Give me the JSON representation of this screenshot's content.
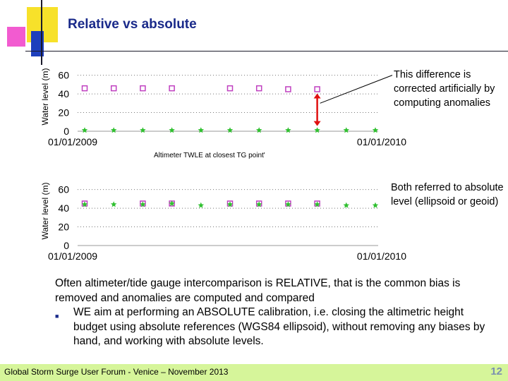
{
  "slide": {
    "title": "Relative vs absolute",
    "note_top": "This difference is corrected artificially by computing anomalies",
    "note_bottom": "Both referred to absolute level (ellipsoid or geoid)",
    "between_label": "Altimeter TWLE at closest TG point'",
    "paragraph": "Often altimeter/tide gauge intercomparison is RELATIVE, that is the common bias is removed and anomalies are computed and compared",
    "bullet": "WE aim at performing an ABSOLUTE calibration, i.e. closing the altimetric height budget using absolute references (WGS84 ellipsoid), without removing any biases by hand, and working with absolute levels.",
    "footer": "Global Storm Surge User Forum - Venice – November 2013",
    "page_number": "12"
  },
  "chart_data": [
    {
      "type": "scatter",
      "ylabel": "Water level (m)",
      "x_tick_labels": [
        "01/01/2009",
        "01/01/2010"
      ],
      "yticks": [
        "0",
        "20",
        "40",
        "60"
      ],
      "ylim": [
        0,
        65
      ],
      "grid": true,
      "series": [
        {
          "marker": "square",
          "color": "#c040c0",
          "x": [
            1,
            2,
            3,
            4,
            6,
            7,
            8,
            9
          ],
          "y": [
            46,
            46,
            46,
            46,
            46,
            46,
            45,
            45
          ]
        },
        {
          "marker": "star",
          "color": "#30c030",
          "x": [
            1,
            2,
            3,
            4,
            5,
            6,
            7,
            8,
            9,
            10,
            11
          ],
          "y": [
            1,
            1,
            1,
            1,
            1,
            1,
            1,
            1,
            1,
            1,
            1
          ]
        }
      ],
      "annotation": {
        "type": "double-arrow",
        "color": "#e01010"
      }
    },
    {
      "type": "scatter",
      "ylabel": "Water level (m)",
      "x_tick_labels": [
        "01/01/2009",
        "01/01/2010"
      ],
      "yticks": [
        "0",
        "20",
        "40",
        "60"
      ],
      "ylim": [
        0,
        65
      ],
      "grid": true,
      "series": [
        {
          "marker": "square",
          "color": "#c040c0",
          "x": [
            1,
            3,
            4,
            6,
            7,
            8,
            9
          ],
          "y": [
            45,
            45,
            45,
            45,
            45,
            45,
            45
          ]
        },
        {
          "marker": "star",
          "color": "#30c030",
          "x": [
            1,
            2,
            3,
            4,
            5,
            6,
            7,
            8,
            9,
            10,
            11
          ],
          "y": [
            44,
            44,
            44,
            45,
            43,
            44,
            44,
            44,
            44,
            43,
            43
          ]
        }
      ]
    }
  ],
  "colors": {
    "title": "#1a2a8a",
    "footer_bg": "#d6f59a",
    "page_number": "#7a8fb0",
    "arrow": "#e01010"
  }
}
